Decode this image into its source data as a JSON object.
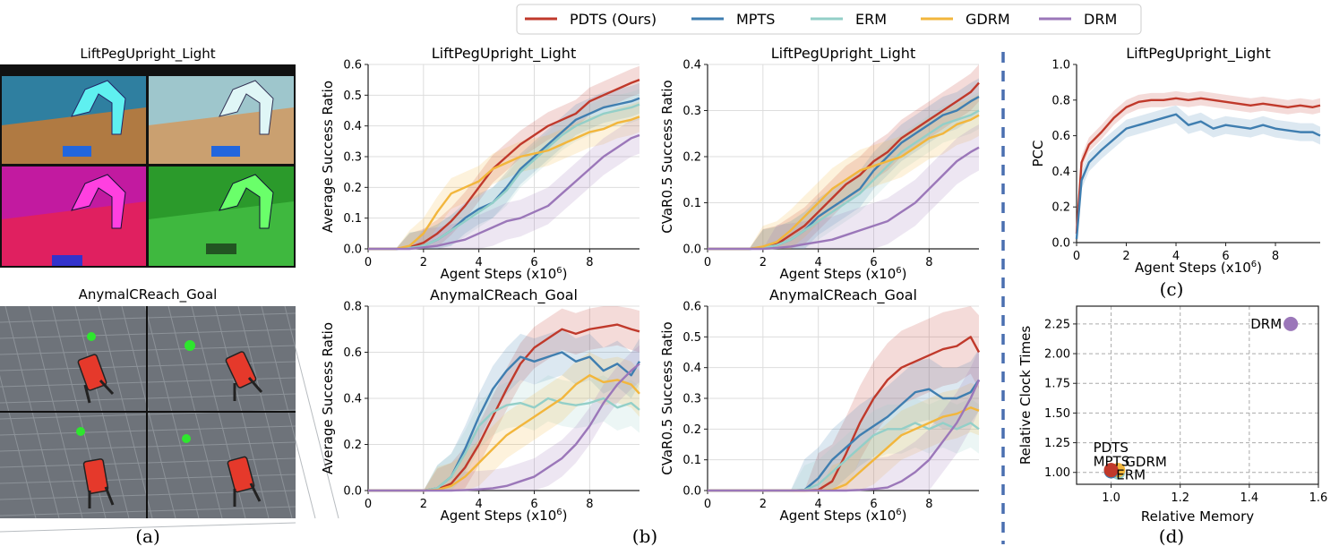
{
  "legend": {
    "items": [
      {
        "label": "PDTS (Ours)",
        "color": "#c0392b"
      },
      {
        "label": "MPTS",
        "color": "#3f7eb0"
      },
      {
        "label": "ERM",
        "color": "#93cfc8"
      },
      {
        "label": "GDRM",
        "color": "#f2b63c"
      },
      {
        "label": "DRM",
        "color": "#9b77b9"
      }
    ]
  },
  "panel_a": {
    "caption": "(a)",
    "top_label": "LiftPegUpright_Light",
    "bottom_label": "AnymalCReach_Goal",
    "top_tile_colors": [
      "#2f7fa0",
      "#9ec6cc",
      "#c21aa0",
      "#2b9a2b"
    ],
    "top_floor_colors": [
      "#b07a42",
      "#caa070",
      "#e02060",
      "#3fb83f"
    ]
  },
  "captions": {
    "b": "(b)",
    "c": "(c)",
    "d": "(d)"
  },
  "chart_data": [
    {
      "type": "line",
      "title": "LiftPegUpright_Light",
      "xlabel": "Agent Steps (x10^6)",
      "ylabel": "Average Success Ratio",
      "xlim": [
        0,
        9.8
      ],
      "ylim": [
        0,
        0.6
      ],
      "xticks": [
        0,
        2,
        4,
        6,
        8
      ],
      "yticks": [
        0.0,
        0.1,
        0.2,
        0.3,
        0.4,
        0.5,
        0.6
      ],
      "grid": true,
      "x": [
        0,
        1,
        1.5,
        2,
        2.5,
        3,
        3.5,
        4,
        4.5,
        5,
        5.5,
        6,
        6.5,
        7,
        7.5,
        8,
        8.5,
        9,
        9.5,
        9.8
      ],
      "series": [
        {
          "name": "PDTS (Ours)",
          "color": "#c0392b",
          "values": [
            0,
            0,
            0.005,
            0.02,
            0.05,
            0.09,
            0.14,
            0.2,
            0.26,
            0.3,
            0.34,
            0.37,
            0.4,
            0.42,
            0.44,
            0.48,
            0.5,
            0.52,
            0.54,
            0.55
          ],
          "band": 0.045
        },
        {
          "name": "MPTS",
          "color": "#3f7eb0",
          "values": [
            0,
            0,
            0.003,
            0.01,
            0.03,
            0.06,
            0.1,
            0.13,
            0.15,
            0.2,
            0.26,
            0.3,
            0.34,
            0.38,
            0.42,
            0.44,
            0.46,
            0.47,
            0.48,
            0.49
          ],
          "band": 0.05
        },
        {
          "name": "ERM",
          "color": "#93cfc8",
          "values": [
            0,
            0,
            0.003,
            0.01,
            0.03,
            0.06,
            0.09,
            0.12,
            0.15,
            0.19,
            0.25,
            0.29,
            0.33,
            0.37,
            0.4,
            0.42,
            0.44,
            0.45,
            0.46,
            0.47
          ],
          "band": 0.05
        },
        {
          "name": "GDRM",
          "color": "#f2b63c",
          "values": [
            0,
            0,
            0.01,
            0.05,
            0.12,
            0.18,
            0.2,
            0.22,
            0.26,
            0.28,
            0.3,
            0.31,
            0.32,
            0.34,
            0.36,
            0.38,
            0.39,
            0.41,
            0.42,
            0.43
          ],
          "band": 0.05
        },
        {
          "name": "DRM",
          "color": "#9b77b9",
          "values": [
            0,
            0,
            0,
            0.005,
            0.01,
            0.02,
            0.03,
            0.05,
            0.07,
            0.09,
            0.1,
            0.12,
            0.14,
            0.18,
            0.22,
            0.26,
            0.3,
            0.33,
            0.36,
            0.37
          ],
          "band": 0.06
        }
      ]
    },
    {
      "type": "line",
      "title": "LiftPegUpright_Light",
      "xlabel": "Agent Steps (x10^6)",
      "ylabel": "CVaR0.5 Success Ratio",
      "xlim": [
        0,
        9.8
      ],
      "ylim": [
        0,
        0.4
      ],
      "xticks": [
        0,
        2,
        4,
        6,
        8
      ],
      "yticks": [
        0.0,
        0.1,
        0.2,
        0.3,
        0.4
      ],
      "grid": true,
      "x": [
        0,
        1,
        1.5,
        2,
        2.5,
        3,
        3.5,
        4,
        4.5,
        5,
        5.5,
        6,
        6.5,
        7,
        7.5,
        8,
        8.5,
        9,
        9.5,
        9.8
      ],
      "series": [
        {
          "name": "PDTS (Ours)",
          "color": "#c0392b",
          "values": [
            0,
            0,
            0,
            0.003,
            0.01,
            0.03,
            0.05,
            0.08,
            0.11,
            0.14,
            0.16,
            0.19,
            0.21,
            0.24,
            0.26,
            0.28,
            0.3,
            0.32,
            0.34,
            0.36
          ],
          "band": 0.04
        },
        {
          "name": "MPTS",
          "color": "#3f7eb0",
          "values": [
            0,
            0,
            0,
            0.002,
            0.008,
            0.02,
            0.04,
            0.07,
            0.09,
            0.11,
            0.13,
            0.17,
            0.2,
            0.23,
            0.25,
            0.27,
            0.29,
            0.3,
            0.32,
            0.33
          ],
          "band": 0.04
        },
        {
          "name": "ERM",
          "color": "#93cfc8",
          "values": [
            0,
            0,
            0,
            0.002,
            0.008,
            0.02,
            0.04,
            0.06,
            0.08,
            0.1,
            0.12,
            0.15,
            0.18,
            0.21,
            0.23,
            0.25,
            0.27,
            0.28,
            0.29,
            0.3
          ],
          "band": 0.04
        },
        {
          "name": "GDRM",
          "color": "#f2b63c",
          "values": [
            0,
            0,
            0,
            0.005,
            0.015,
            0.04,
            0.07,
            0.1,
            0.13,
            0.15,
            0.17,
            0.18,
            0.19,
            0.2,
            0.22,
            0.24,
            0.25,
            0.27,
            0.28,
            0.29
          ],
          "band": 0.045
        },
        {
          "name": "DRM",
          "color": "#9b77b9",
          "values": [
            0,
            0,
            0,
            0,
            0.002,
            0.005,
            0.01,
            0.015,
            0.02,
            0.03,
            0.04,
            0.05,
            0.06,
            0.08,
            0.1,
            0.13,
            0.16,
            0.19,
            0.21,
            0.22
          ],
          "band": 0.05
        }
      ]
    },
    {
      "type": "line",
      "title": "AnymalCReach_Goal",
      "xlabel": "Agent Steps (x10^6)",
      "ylabel": "Average Success Ratio",
      "xlim": [
        0,
        9.8
      ],
      "ylim": [
        0,
        0.8
      ],
      "xticks": [
        0,
        2,
        4,
        6,
        8
      ],
      "yticks": [
        0.0,
        0.2,
        0.4,
        0.6,
        0.8
      ],
      "grid": true,
      "x": [
        0,
        1,
        2,
        2.5,
        3,
        3.5,
        4,
        4.5,
        5,
        5.5,
        6,
        6.5,
        7,
        7.5,
        8,
        8.5,
        9,
        9.5,
        9.8
      ],
      "series": [
        {
          "name": "PDTS (Ours)",
          "color": "#c0392b",
          "values": [
            0,
            0,
            0,
            0.005,
            0.03,
            0.1,
            0.2,
            0.32,
            0.44,
            0.55,
            0.62,
            0.66,
            0.7,
            0.68,
            0.7,
            0.71,
            0.72,
            0.7,
            0.69
          ],
          "band": 0.09
        },
        {
          "name": "MPTS",
          "color": "#3f7eb0",
          "values": [
            0,
            0,
            0,
            0.01,
            0.06,
            0.18,
            0.32,
            0.44,
            0.52,
            0.58,
            0.56,
            0.58,
            0.6,
            0.56,
            0.58,
            0.52,
            0.55,
            0.5,
            0.56
          ],
          "band": 0.1
        },
        {
          "name": "ERM",
          "color": "#93cfc8",
          "values": [
            0,
            0,
            0,
            0.01,
            0.06,
            0.16,
            0.28,
            0.34,
            0.37,
            0.38,
            0.36,
            0.4,
            0.38,
            0.37,
            0.38,
            0.4,
            0.36,
            0.38,
            0.35
          ],
          "band": 0.1
        },
        {
          "name": "GDRM",
          "color": "#f2b63c",
          "values": [
            0,
            0,
            0,
            0.003,
            0.02,
            0.06,
            0.12,
            0.18,
            0.24,
            0.28,
            0.32,
            0.36,
            0.4,
            0.46,
            0.5,
            0.47,
            0.48,
            0.46,
            0.42
          ],
          "band": 0.1
        },
        {
          "name": "DRM",
          "color": "#9b77b9",
          "values": [
            0,
            0,
            0,
            0,
            0,
            0.002,
            0.005,
            0.01,
            0.02,
            0.04,
            0.06,
            0.1,
            0.14,
            0.2,
            0.28,
            0.38,
            0.46,
            0.52,
            0.55
          ],
          "band": 0.08
        }
      ]
    },
    {
      "type": "line",
      "title": "AnymalCReach_Goal",
      "xlabel": "Agent Steps (x10^6)",
      "ylabel": "CVaR0.5 Success Ratio",
      "xlim": [
        0,
        9.8
      ],
      "ylim": [
        0,
        0.6
      ],
      "xticks": [
        0,
        2,
        4,
        6,
        8
      ],
      "yticks": [
        0.0,
        0.1,
        0.2,
        0.3,
        0.4,
        0.5,
        0.6
      ],
      "grid": true,
      "x": [
        0,
        2,
        3,
        3.5,
        4,
        4.5,
        5,
        5.5,
        6,
        6.5,
        7,
        7.5,
        8,
        8.5,
        9,
        9.5,
        9.8
      ],
      "series": [
        {
          "name": "PDTS (Ours)",
          "color": "#c0392b",
          "values": [
            0,
            0,
            0,
            0,
            0.002,
            0.03,
            0.12,
            0.22,
            0.3,
            0.36,
            0.4,
            0.42,
            0.44,
            0.46,
            0.47,
            0.5,
            0.45
          ],
          "band": 0.12
        },
        {
          "name": "MPTS",
          "color": "#3f7eb0",
          "values": [
            0,
            0,
            0,
            0.002,
            0.04,
            0.1,
            0.14,
            0.18,
            0.21,
            0.24,
            0.28,
            0.32,
            0.33,
            0.3,
            0.3,
            0.32,
            0.36
          ],
          "band": 0.1
        },
        {
          "name": "ERM",
          "color": "#93cfc8",
          "values": [
            0,
            0,
            0,
            0.002,
            0.02,
            0.06,
            0.1,
            0.14,
            0.18,
            0.2,
            0.2,
            0.22,
            0.2,
            0.22,
            0.2,
            0.22,
            0.2
          ],
          "band": 0.08
        },
        {
          "name": "GDRM",
          "color": "#f2b63c",
          "values": [
            0,
            0,
            0,
            0,
            0,
            0.002,
            0.02,
            0.06,
            0.1,
            0.14,
            0.18,
            0.2,
            0.22,
            0.24,
            0.25,
            0.27,
            0.26
          ],
          "band": 0.08
        },
        {
          "name": "DRM",
          "color": "#9b77b9",
          "values": [
            0,
            0,
            0,
            0,
            0,
            0,
            0,
            0.002,
            0.005,
            0.01,
            0.03,
            0.06,
            0.1,
            0.16,
            0.22,
            0.3,
            0.36
          ],
          "band": 0.1
        }
      ]
    },
    {
      "type": "line",
      "title": "LiftPegUpright_Light",
      "xlabel": "Agent Steps (x10^6)",
      "ylabel": "PCC",
      "xlim": [
        0,
        9.8
      ],
      "ylim": [
        0,
        1.0
      ],
      "xticks": [
        0,
        2,
        4,
        6,
        8
      ],
      "yticks": [
        0.0,
        0.2,
        0.4,
        0.6,
        0.8,
        1.0
      ],
      "grid": false,
      "x": [
        0,
        0.2,
        0.5,
        1,
        1.5,
        2,
        2.5,
        3,
        3.5,
        4,
        4.5,
        5,
        5.5,
        6,
        6.5,
        7,
        7.5,
        8,
        8.5,
        9,
        9.5,
        9.8
      ],
      "series": [
        {
          "name": "PDTS (Ours)",
          "color": "#c0392b",
          "values": [
            0.05,
            0.45,
            0.55,
            0.62,
            0.7,
            0.76,
            0.79,
            0.8,
            0.8,
            0.81,
            0.8,
            0.81,
            0.8,
            0.79,
            0.78,
            0.77,
            0.78,
            0.77,
            0.76,
            0.77,
            0.76,
            0.77
          ],
          "band": 0.04
        },
        {
          "name": "MPTS",
          "color": "#3f7eb0",
          "values": [
            0.02,
            0.35,
            0.45,
            0.52,
            0.58,
            0.64,
            0.66,
            0.68,
            0.7,
            0.72,
            0.66,
            0.68,
            0.64,
            0.66,
            0.65,
            0.64,
            0.66,
            0.64,
            0.63,
            0.62,
            0.62,
            0.6
          ],
          "band": 0.05
        }
      ]
    },
    {
      "type": "scatter",
      "xlabel": "Relative Memory",
      "ylabel": "Relative Clock Times",
      "xlim": [
        0.9,
        1.6
      ],
      "ylim": [
        0.9,
        2.4
      ],
      "xticks": [
        1.0,
        1.2,
        1.4,
        1.6
      ],
      "yticks": [
        1.0,
        1.25,
        1.5,
        1.75,
        2.0,
        2.25
      ],
      "grid": true,
      "points": [
        {
          "name": "DRM",
          "x": 1.52,
          "y": 2.25,
          "color": "#9b77b9"
        },
        {
          "name": "ERM",
          "x": 1.02,
          "y": 1.0,
          "color": "#93cfc8"
        },
        {
          "name": "GDRM",
          "x": 1.02,
          "y": 1.02,
          "color": "#f2b63c"
        },
        {
          "name": "MPTS",
          "x": 1.0,
          "y": 1.01,
          "color": "#3f7eb0"
        },
        {
          "name": "PDTS",
          "x": 1.0,
          "y": 1.02,
          "color": "#c0392b"
        }
      ]
    }
  ]
}
